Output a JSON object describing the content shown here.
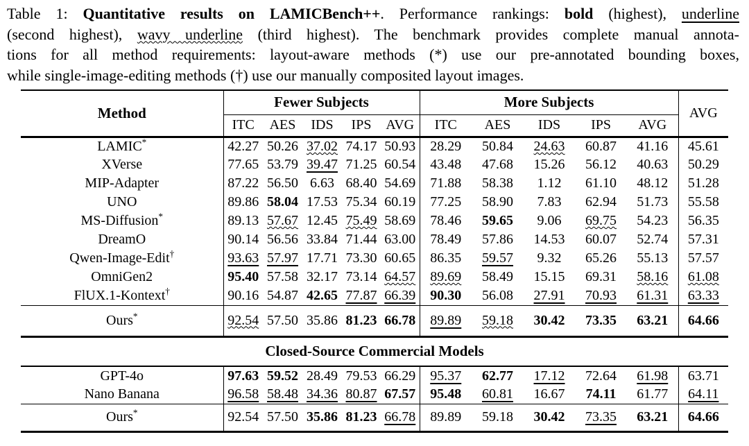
{
  "caption": {
    "table_label": "Table 1: ",
    "title_bold": "Quantitative results on LAMICBench++",
    "after_title": ". Performance rankings: ",
    "bold_label": "bold",
    "after_bold": " (highest), ",
    "underline_label": "underline",
    "line2_start": "(second highest), ",
    "wavy_label": "wavy underline",
    "line2_rest": " (third highest). The benchmark provides complete manual annota-",
    "line3_a": "tions for all method requirements: layout-aware methods (",
    "star_marker": "*",
    "line3_b": ") use our pre-annotated bounding boxes,",
    "line4_a": "while single-image-editing methods (",
    "dagger_marker": "†",
    "line4_b": ") use our manually composited layout images."
  },
  "table": {
    "format_legend": {
      "b": "bold = highest",
      "u": "underline = second highest",
      "w": "wavy underline = third highest",
      "p": "plain"
    },
    "header": {
      "method": "Method",
      "group_fewer": "Fewer Subjects",
      "group_more": "More Subjects",
      "overall_avg": "AVG",
      "metric_columns": [
        "ITC",
        "AES",
        "IDS",
        "IPS",
        "AVG"
      ]
    },
    "open_source": {
      "rows": [
        {
          "method": "LAMIC",
          "sup": "*",
          "values": [
            "42.27",
            "50.26",
            "37.02",
            "74.17",
            "50.93",
            "28.29",
            "50.84",
            "24.63",
            "60.87",
            "41.16",
            "45.61"
          ],
          "marks": [
            "p",
            "p",
            "w",
            "p",
            "p",
            "p",
            "p",
            "w",
            "p",
            "p",
            "p"
          ]
        },
        {
          "method": "XVerse",
          "sup": "",
          "values": [
            "77.65",
            "53.79",
            "39.47",
            "71.25",
            "60.54",
            "43.48",
            "47.68",
            "15.26",
            "56.12",
            "40.63",
            "50.29"
          ],
          "marks": [
            "p",
            "p",
            "u",
            "p",
            "p",
            "p",
            "p",
            "p",
            "p",
            "p",
            "p"
          ]
        },
        {
          "method": "MIP-Adapter",
          "sup": "",
          "values": [
            "87.22",
            "56.50",
            "6.63",
            "68.40",
            "54.69",
            "71.88",
            "58.38",
            "1.12",
            "61.10",
            "48.12",
            "51.28"
          ],
          "marks": [
            "p",
            "p",
            "p",
            "p",
            "p",
            "p",
            "p",
            "p",
            "p",
            "p",
            "p"
          ]
        },
        {
          "method": "UNO",
          "sup": "",
          "values": [
            "89.86",
            "58.04",
            "17.53",
            "75.34",
            "60.19",
            "77.25",
            "58.90",
            "7.83",
            "62.94",
            "51.73",
            "55.58"
          ],
          "marks": [
            "p",
            "b",
            "p",
            "p",
            "p",
            "p",
            "p",
            "p",
            "p",
            "p",
            "p"
          ]
        },
        {
          "method": "MS-Diffusion",
          "sup": "*",
          "values": [
            "89.13",
            "57.67",
            "12.45",
            "75.49",
            "58.69",
            "78.46",
            "59.65",
            "9.06",
            "69.75",
            "54.23",
            "56.35"
          ],
          "marks": [
            "p",
            "w",
            "p",
            "w",
            "p",
            "p",
            "b",
            "p",
            "w",
            "p",
            "p"
          ]
        },
        {
          "method": "DreamO",
          "sup": "",
          "values": [
            "90.14",
            "56.56",
            "33.84",
            "71.44",
            "63.00",
            "78.49",
            "57.86",
            "14.53",
            "60.07",
            "52.74",
            "57.31"
          ],
          "marks": [
            "p",
            "p",
            "p",
            "p",
            "p",
            "p",
            "p",
            "p",
            "p",
            "p",
            "p"
          ]
        },
        {
          "method": "Qwen-Image-Edit",
          "sup": "†",
          "values": [
            "93.63",
            "57.97",
            "17.71",
            "73.30",
            "60.65",
            "86.35",
            "59.57",
            "9.32",
            "65.26",
            "55.13",
            "57.57"
          ],
          "marks": [
            "u",
            "u",
            "p",
            "p",
            "p",
            "p",
            "u",
            "p",
            "p",
            "p",
            "p"
          ]
        },
        {
          "method": "OmniGen2",
          "sup": "",
          "values": [
            "95.40",
            "57.58",
            "32.17",
            "73.14",
            "64.57",
            "89.69",
            "58.49",
            "15.15",
            "69.31",
            "58.16",
            "61.08"
          ],
          "marks": [
            "b",
            "p",
            "p",
            "p",
            "w",
            "w",
            "p",
            "p",
            "p",
            "w",
            "w"
          ]
        },
        {
          "method": "FlUX.1-Kontext",
          "sup": "†",
          "values": [
            "90.16",
            "54.87",
            "42.65",
            "77.87",
            "66.39",
            "90.30",
            "56.08",
            "27.91",
            "70.93",
            "61.31",
            "63.33"
          ],
          "marks": [
            "p",
            "p",
            "b",
            "u",
            "u",
            "b",
            "p",
            "u",
            "u",
            "u",
            "u"
          ]
        }
      ],
      "ours": {
        "method": "Ours",
        "sup": "*",
        "values": [
          "92.54",
          "57.50",
          "35.86",
          "81.23",
          "66.78",
          "89.89",
          "59.18",
          "30.42",
          "73.35",
          "63.21",
          "64.66"
        ],
        "marks": [
          "w",
          "p",
          "p",
          "b",
          "b",
          "u",
          "w",
          "b",
          "b",
          "b",
          "b"
        ]
      }
    },
    "closed_source": {
      "banner": "Closed-Source Commercial Models",
      "rows": [
        {
          "method": "GPT-4o",
          "sup": "",
          "values": [
            "97.63",
            "59.52",
            "28.49",
            "79.53",
            "66.29",
            "95.37",
            "62.77",
            "17.12",
            "72.64",
            "61.98",
            "63.71"
          ],
          "marks": [
            "b",
            "b",
            "p",
            "p",
            "p",
            "u",
            "b",
            "u",
            "p",
            "u",
            "p"
          ]
        },
        {
          "method": "Nano Banana",
          "sup": "",
          "values": [
            "96.58",
            "58.48",
            "34.36",
            "80.87",
            "67.57",
            "95.48",
            "60.81",
            "16.67",
            "74.11",
            "61.77",
            "64.11"
          ],
          "marks": [
            "u",
            "u",
            "u",
            "u",
            "b",
            "b",
            "u",
            "p",
            "b",
            "p",
            "u"
          ]
        }
      ],
      "ours": {
        "method": "Ours",
        "sup": "*",
        "values": [
          "92.54",
          "57.50",
          "35.86",
          "81.23",
          "66.78",
          "89.89",
          "59.18",
          "30.42",
          "73.35",
          "63.21",
          "64.66"
        ],
        "marks": [
          "p",
          "p",
          "b",
          "b",
          "u",
          "p",
          "p",
          "b",
          "u",
          "b",
          "b"
        ]
      }
    }
  }
}
